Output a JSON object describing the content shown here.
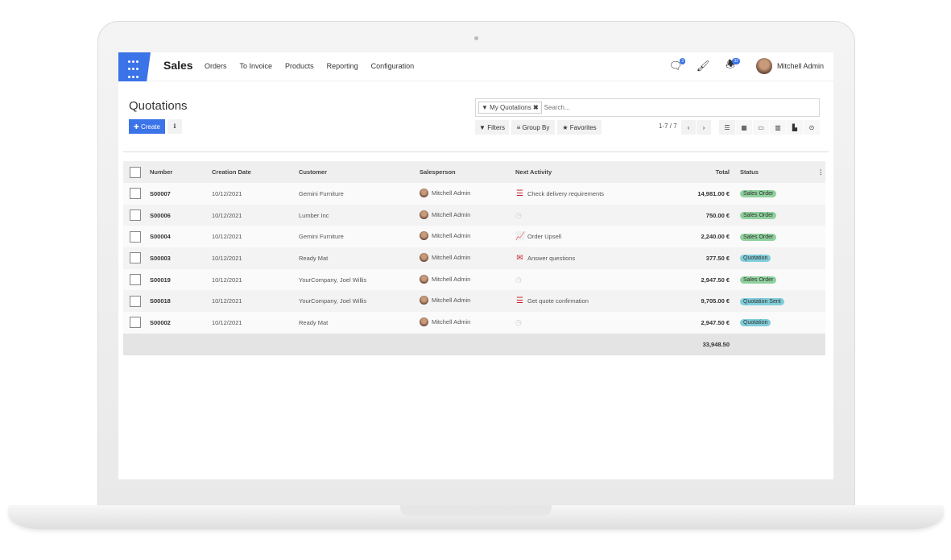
{
  "nav": {
    "app": "Sales",
    "menu": [
      "Orders",
      "To Invoice",
      "Products",
      "Reporting",
      "Configuration"
    ],
    "messages_count": "3",
    "activities_count": "32",
    "user": "Mitchell Admin"
  },
  "page": {
    "title": "Quotations",
    "create_label": "Create"
  },
  "search": {
    "facet": "My Quotations",
    "placeholder": "Search..."
  },
  "filters": {
    "filters": "Filters",
    "group_by": "Group By",
    "favorites": "Favorites"
  },
  "pager": "1-7 / 7",
  "colors": {
    "accent": "#3b73e8",
    "sales_order": "#8fd19e",
    "quotation": "#7fcdd9",
    "activity": "#c9252c"
  },
  "table": {
    "headers": [
      "Number",
      "Creation Date",
      "Customer",
      "Salesperson",
      "Next Activity",
      "Total",
      "Status"
    ],
    "rows": [
      {
        "number": "S00007",
        "date": "10/12/2021",
        "customer": "Gemini Furniture",
        "salesperson": "Mitchell Admin",
        "activity": "Check delivery requirements",
        "activity_icon": "tasks-icon",
        "total": "14,981.00 €",
        "status": "Sales Order"
      },
      {
        "number": "S00006",
        "date": "10/12/2021",
        "customer": "Lumber Inc",
        "salesperson": "Mitchell Admin",
        "activity": "",
        "activity_icon": "clock-icon",
        "total": "750.00 €",
        "status": "Sales Order"
      },
      {
        "number": "S00004",
        "date": "10/12/2021",
        "customer": "Gemini Furniture",
        "salesperson": "Mitchell Admin",
        "activity": "Order Upsell",
        "activity_icon": "chart-line-icon",
        "total": "2,240.00 €",
        "status": "Sales Order"
      },
      {
        "number": "S00003",
        "date": "10/12/2021",
        "customer": "Ready Mat",
        "salesperson": "Mitchell Admin",
        "activity": "Answer questions",
        "activity_icon": "envelope-icon",
        "total": "377.50 €",
        "status": "Quotation"
      },
      {
        "number": "S00019",
        "date": "10/12/2021",
        "customer": "YourCompany, Joel Willis",
        "salesperson": "Mitchell Admin",
        "activity": "",
        "activity_icon": "clock-icon",
        "total": "2,947.50 €",
        "status": "Sales Order"
      },
      {
        "number": "S00018",
        "date": "10/12/2021",
        "customer": "YourCompany, Joel Willis",
        "salesperson": "Mitchell Admin",
        "activity": "Get quote confirmation",
        "activity_icon": "tasks-icon",
        "total": "9,705.00 €",
        "status": "Quotation Sent"
      },
      {
        "number": "S00002",
        "date": "10/12/2021",
        "customer": "Ready Mat",
        "salesperson": "Mitchell Admin",
        "activity": "",
        "activity_icon": "clock-icon",
        "total": "2,947.50 €",
        "status": "Quotation"
      }
    ],
    "sum_total": "33,948.50"
  }
}
